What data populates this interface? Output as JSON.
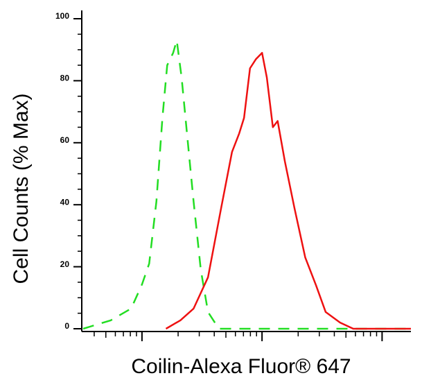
{
  "chart_data": {
    "type": "line",
    "x_label": "Coilin-Alexa Fluor® 647",
    "y_label": "Cell Counts (% Max)",
    "xscale": "log",
    "xlim": [
      0.51,
      3.24
    ],
    "xticks": [
      1,
      2,
      3
    ],
    "ylim": [
      0,
      100
    ],
    "yticks": [
      0,
      20,
      40,
      60,
      80,
      100
    ],
    "series": [
      {
        "color": "#22dd22",
        "dash": true,
        "x": [
          0.51,
          0.62,
          0.74,
          0.91,
          1.0,
          1.06,
          1.12,
          1.17,
          1.21,
          1.26,
          1.29,
          1.33,
          1.38,
          1.43,
          1.49,
          1.55,
          1.64,
          3.24
        ],
        "values": [
          0,
          1.3,
          2.7,
          6.5,
          14.3,
          21,
          41,
          68,
          85,
          89,
          93,
          81,
          61,
          41,
          19,
          5.4,
          0,
          0
        ]
      },
      {
        "color": "#ee1111",
        "dash": false,
        "x": [
          1.2,
          1.32,
          1.43,
          1.55,
          1.66,
          1.75,
          1.81,
          1.85,
          1.9,
          1.95,
          2.0,
          2.04,
          2.09,
          2.13,
          2.19,
          2.27,
          2.36,
          2.45,
          2.53,
          2.65,
          2.76,
          3.24
        ],
        "values": [
          0,
          2.7,
          6.5,
          16.6,
          39,
          57,
          63,
          68,
          84,
          87,
          89,
          81,
          65,
          67,
          54,
          39,
          23,
          14,
          5.4,
          2,
          0,
          0
        ]
      }
    ]
  }
}
